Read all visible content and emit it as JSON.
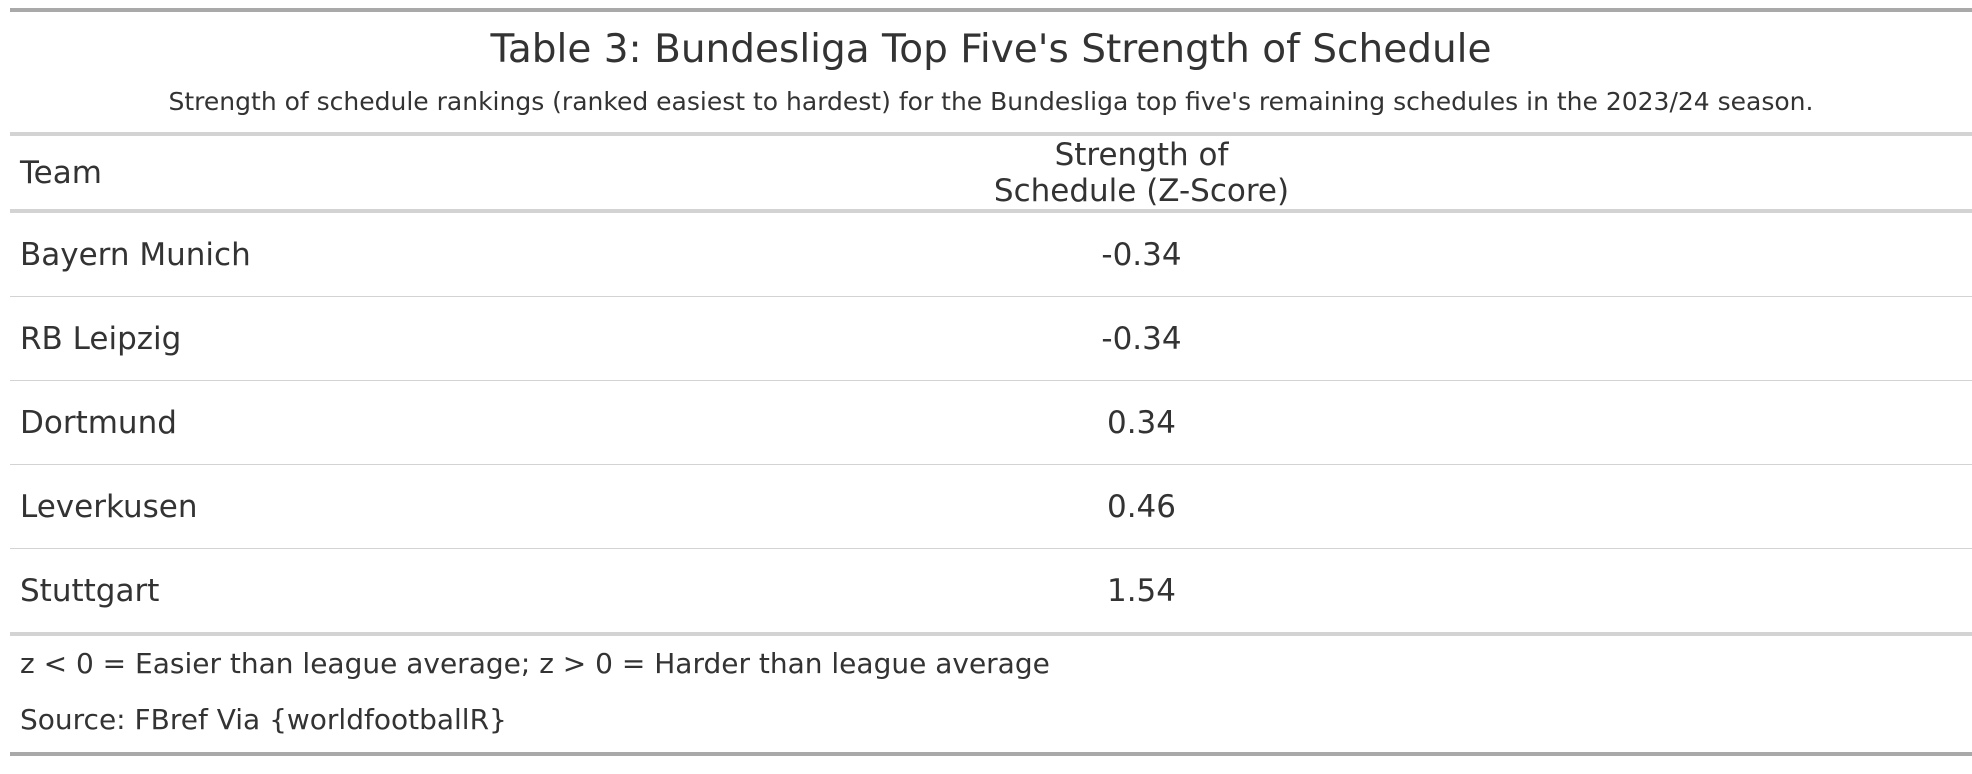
{
  "chart_data": {
    "type": "table",
    "title": "Table 3: Bundesliga Top Five's Strength of Schedule",
    "subtitle": "Strength of schedule rankings (ranked easiest to hardest) for the Bundesliga top five's remaining schedules in the 2023/24 season.",
    "columns": [
      "Team",
      "Strength of Schedule (Z-Score)"
    ],
    "rows": [
      {
        "team": "Bayern Munich",
        "sos": "-0.34"
      },
      {
        "team": "RB Leipzig",
        "sos": "-0.34"
      },
      {
        "team": "Dortmund",
        "sos": "0.34"
      },
      {
        "team": "Leverkusen",
        "sos": "0.46"
      },
      {
        "team": "Stuttgart",
        "sos": "1.54"
      }
    ],
    "footnote": "z < 0 = Easier than league average; z > 0 = Harder than league average",
    "source": "Source: FBref Via {worldfootballR}"
  }
}
